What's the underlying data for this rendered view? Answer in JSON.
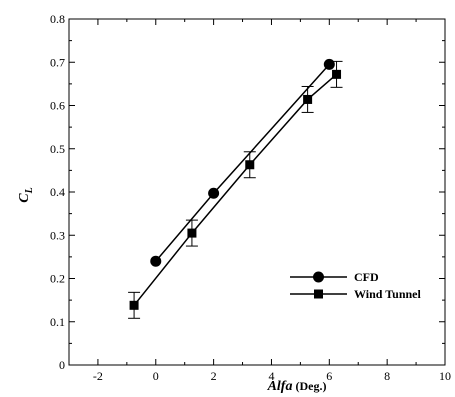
{
  "chart_data": {
    "type": "line",
    "title": "",
    "xlabel": {
      "italic": "Alfa",
      "normal": " (Deg.)"
    },
    "ylabel": {
      "main": "C",
      "sub": "L"
    },
    "xlim": [
      -3,
      10
    ],
    "ylim": [
      0,
      0.8
    ],
    "xticks": [
      -2,
      0,
      2,
      4,
      6,
      8,
      10
    ],
    "xtick_labels": [
      "-2",
      "0",
      "2",
      "4",
      "6",
      "8",
      "10"
    ],
    "yticks": [
      0,
      0.1,
      0.2,
      0.3,
      0.4,
      0.5,
      0.6,
      0.7,
      0.8
    ],
    "ytick_labels": [
      "0",
      "0.1",
      "0.2",
      "0.3",
      "0.4",
      "0.5",
      "0.6",
      "0.7",
      "0.8"
    ],
    "grid": false,
    "legend_position": "right",
    "series": [
      {
        "name": "CFD",
        "marker": "circle",
        "color": "#000000",
        "x": [
          0,
          2,
          6
        ],
        "y": [
          0.24,
          0.397,
          0.695
        ]
      },
      {
        "name": "Wind Tunnel",
        "marker": "square",
        "color": "#000000",
        "x": [
          -0.75,
          1.25,
          3.25,
          5.25,
          6.25
        ],
        "y": [
          0.138,
          0.305,
          0.463,
          0.614,
          0.672
        ],
        "error": [
          0.03,
          0.03,
          0.03,
          0.03,
          0.03
        ]
      }
    ]
  }
}
